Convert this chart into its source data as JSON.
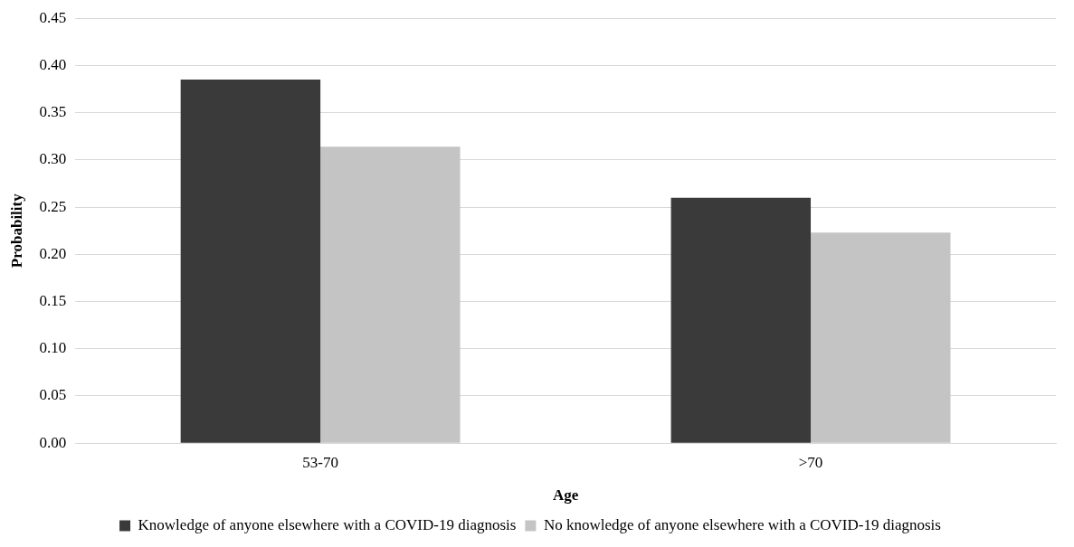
{
  "chart_data": {
    "type": "bar",
    "xlabel": "Age",
    "ylabel": "Probability",
    "categories": [
      "53-70",
      ">70"
    ],
    "series": [
      {
        "name": "Knowledge of anyone elsewhere with a COVID-19 diagnosis",
        "color": "#3a3a3a",
        "values": [
          0.385,
          0.26
        ]
      },
      {
        "name": "No knowledge of anyone elsewhere with a COVID-19 diagnosis",
        "color": "#c4c4c4",
        "values": [
          0.314,
          0.223
        ]
      }
    ],
    "ylim": [
      0,
      0.45
    ],
    "yticks": [
      {
        "value": 0,
        "label": "0.00"
      },
      {
        "value": 0.05,
        "label": "0.05"
      },
      {
        "value": 0.1,
        "label": "0.10"
      },
      {
        "value": 0.15,
        "label": "0.15"
      },
      {
        "value": 0.2,
        "label": "0.20"
      },
      {
        "value": 0.25,
        "label": "0.25"
      },
      {
        "value": 0.3,
        "label": "0.30"
      },
      {
        "value": 0.35,
        "label": "0.35"
      },
      {
        "value": 0.4,
        "label": "0.40"
      },
      {
        "value": 0.45,
        "label": "0.45"
      }
    ],
    "grid": "y",
    "legend": "bottom"
  }
}
